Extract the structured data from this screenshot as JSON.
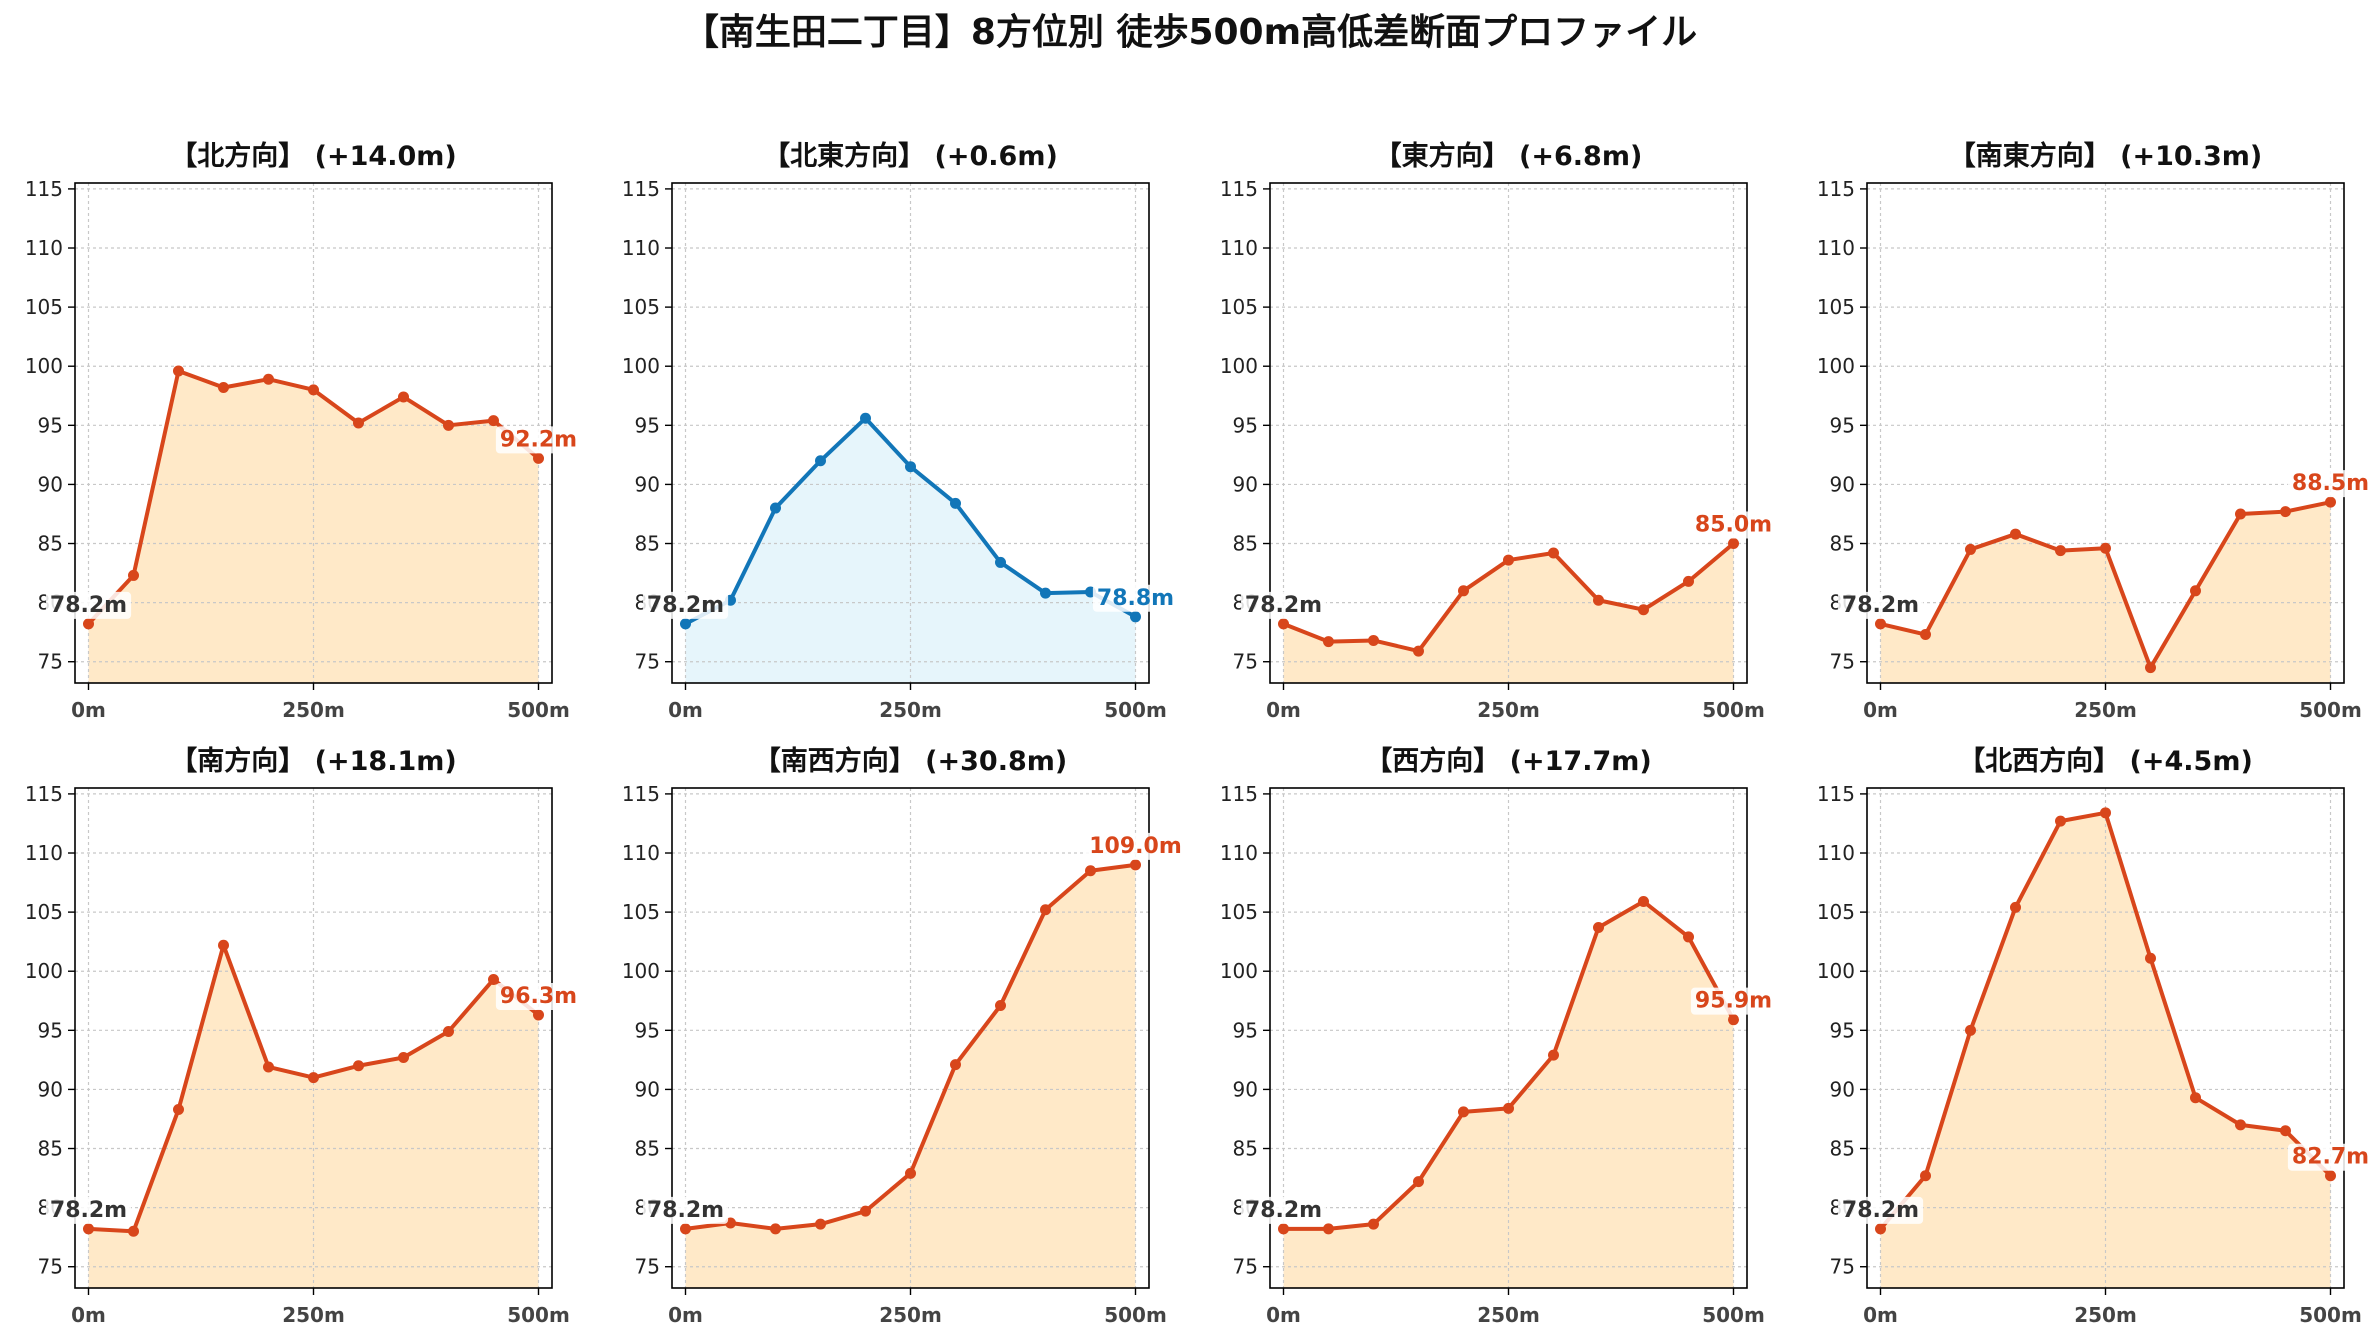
{
  "title": "【南生田二丁目】8方位別 徒歩500m高低差断面プロファイル",
  "colors": {
    "orange": "#d8461b",
    "orange_fill": "#ffe9c8",
    "blue": "#1276b8",
    "blue_fill": "#e6f5fb",
    "start_label": "#333333"
  },
  "chart_data": [
    {
      "type": "line",
      "title": "【北方向】 (+14.0m)",
      "color": "orange",
      "x": [
        0,
        50,
        100,
        150,
        200,
        250,
        300,
        350,
        400,
        450,
        500
      ],
      "y": [
        78.2,
        82.3,
        99.6,
        98.2,
        98.9,
        98.0,
        95.2,
        97.4,
        95.0,
        95.4,
        92.2
      ],
      "start_label": "78.2m",
      "end_label": "92.2m",
      "ylim": [
        73.2,
        115.5
      ],
      "yticks": [
        75,
        80,
        85,
        90,
        95,
        100,
        105,
        110,
        115
      ],
      "xticks": [
        0,
        250,
        500
      ],
      "xtick_labels": [
        "0m",
        "250m",
        "500m"
      ],
      "grid": true
    },
    {
      "type": "line",
      "title": "【北東方向】 (+0.6m)",
      "color": "blue",
      "x": [
        0,
        50,
        100,
        150,
        200,
        250,
        300,
        350,
        400,
        450,
        500
      ],
      "y": [
        78.2,
        80.2,
        88.0,
        92.0,
        95.6,
        91.5,
        88.4,
        83.4,
        80.8,
        80.9,
        78.8
      ],
      "start_label": "78.2m",
      "end_label": "78.8m",
      "ylim": [
        73.2,
        115.5
      ],
      "yticks": [
        75,
        80,
        85,
        90,
        95,
        100,
        105,
        110,
        115
      ],
      "xticks": [
        0,
        250,
        500
      ],
      "xtick_labels": [
        "0m",
        "250m",
        "500m"
      ],
      "grid": true
    },
    {
      "type": "line",
      "title": "【東方向】 (+6.8m)",
      "color": "orange",
      "x": [
        0,
        50,
        100,
        150,
        200,
        250,
        300,
        350,
        400,
        450,
        500
      ],
      "y": [
        78.2,
        76.7,
        76.8,
        75.9,
        81.0,
        83.6,
        84.2,
        80.2,
        79.4,
        81.8,
        85.0
      ],
      "start_label": "78.2m",
      "end_label": "85.0m",
      "ylim": [
        73.2,
        115.5
      ],
      "yticks": [
        75,
        80,
        85,
        90,
        95,
        100,
        105,
        110,
        115
      ],
      "xticks": [
        0,
        250,
        500
      ],
      "xtick_labels": [
        "0m",
        "250m",
        "500m"
      ],
      "grid": true
    },
    {
      "type": "line",
      "title": "【南東方向】 (+10.3m)",
      "color": "orange",
      "x": [
        0,
        50,
        100,
        150,
        200,
        250,
        300,
        350,
        400,
        450,
        500
      ],
      "y": [
        78.2,
        77.3,
        84.5,
        85.8,
        84.4,
        84.6,
        74.5,
        81.0,
        87.5,
        87.7,
        88.5
      ],
      "start_label": "78.2m",
      "end_label": "88.5m",
      "ylim": [
        73.2,
        115.5
      ],
      "yticks": [
        75,
        80,
        85,
        90,
        95,
        100,
        105,
        110,
        115
      ],
      "xticks": [
        0,
        250,
        500
      ],
      "xtick_labels": [
        "0m",
        "250m",
        "500m"
      ],
      "grid": true
    },
    {
      "type": "line",
      "title": "【南方向】 (+18.1m)",
      "color": "orange",
      "x": [
        0,
        50,
        100,
        150,
        200,
        250,
        300,
        350,
        400,
        450,
        500
      ],
      "y": [
        78.2,
        78.0,
        88.3,
        102.2,
        91.9,
        91.0,
        92.0,
        92.7,
        94.9,
        99.3,
        96.3
      ],
      "start_label": "78.2m",
      "end_label": "96.3m",
      "ylim": [
        73.2,
        115.5
      ],
      "yticks": [
        75,
        80,
        85,
        90,
        95,
        100,
        105,
        110,
        115
      ],
      "xticks": [
        0,
        250,
        500
      ],
      "xtick_labels": [
        "0m",
        "250m",
        "500m"
      ],
      "grid": true
    },
    {
      "type": "line",
      "title": "【南西方向】 (+30.8m)",
      "color": "orange",
      "x": [
        0,
        50,
        100,
        150,
        200,
        250,
        300,
        350,
        400,
        450,
        500
      ],
      "y": [
        78.2,
        78.7,
        78.2,
        78.6,
        79.7,
        82.9,
        92.1,
        97.1,
        105.2,
        108.5,
        109.0
      ],
      "start_label": "78.2m",
      "end_label": "109.0m",
      "ylim": [
        73.2,
        115.5
      ],
      "yticks": [
        75,
        80,
        85,
        90,
        95,
        100,
        105,
        110,
        115
      ],
      "xticks": [
        0,
        250,
        500
      ],
      "xtick_labels": [
        "0m",
        "250m",
        "500m"
      ],
      "grid": true
    },
    {
      "type": "line",
      "title": "【西方向】 (+17.7m)",
      "color": "orange",
      "x": [
        0,
        50,
        100,
        150,
        200,
        250,
        300,
        350,
        400,
        450,
        500
      ],
      "y": [
        78.2,
        78.2,
        78.6,
        82.2,
        88.1,
        88.4,
        92.9,
        103.7,
        105.9,
        102.9,
        95.9
      ],
      "start_label": "78.2m",
      "end_label": "95.9m",
      "ylim": [
        73.2,
        115.5
      ],
      "yticks": [
        75,
        80,
        85,
        90,
        95,
        100,
        105,
        110,
        115
      ],
      "xticks": [
        0,
        250,
        500
      ],
      "xtick_labels": [
        "0m",
        "250m",
        "500m"
      ],
      "grid": true
    },
    {
      "type": "line",
      "title": "【北西方向】 (+4.5m)",
      "color": "orange",
      "x": [
        0,
        50,
        100,
        150,
        200,
        250,
        300,
        350,
        400,
        450,
        500
      ],
      "y": [
        78.2,
        82.7,
        95.0,
        105.4,
        112.7,
        113.4,
        101.1,
        89.3,
        87.0,
        86.5,
        82.7
      ],
      "start_label": "78.2m",
      "end_label": "82.7m",
      "ylim": [
        73.2,
        115.5
      ],
      "yticks": [
        75,
        80,
        85,
        90,
        95,
        100,
        105,
        110,
        115
      ],
      "xticks": [
        0,
        250,
        500
      ],
      "xtick_labels": [
        "0m",
        "250m",
        "500m"
      ],
      "grid": true
    }
  ]
}
